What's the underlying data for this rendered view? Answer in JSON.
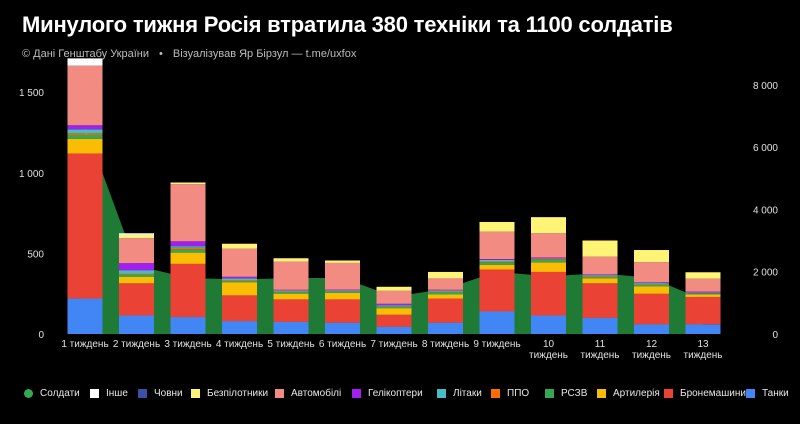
{
  "header": {
    "title": "Минулого тижня Росія втратила 380 техніки та 1100 солдатів",
    "source": "© Дані Генштабу України",
    "credit": "Візуалізував Яр Бірзул — t.me/uxfox"
  },
  "chart_data": {
    "type": "bar",
    "stacked": true,
    "categories": [
      "1 тиждень",
      "2 тиждень",
      "3 тиждень",
      "4 тиждень",
      "5 тиждень",
      "6 тиждень",
      "7 тиждень",
      "8 тиждень",
      "9 тиждень",
      "10 тиждень",
      "11 тиждень",
      "12 тиждень",
      "13 тиждень"
    ],
    "category_lines": [
      [
        "1 тиждень"
      ],
      [
        "2 тиждень"
      ],
      [
        "3 тиждень"
      ],
      [
        "4 тиждень"
      ],
      [
        "5 тиждень"
      ],
      [
        "6 тиждень"
      ],
      [
        "7 тиждень"
      ],
      [
        "8 тиждень"
      ],
      [
        "9 тиждень"
      ],
      [
        "10",
        "тиждень"
      ],
      [
        "11",
        "тиждень"
      ],
      [
        "12",
        "тиждень"
      ],
      [
        "13",
        "тиждень"
      ]
    ],
    "y_left": {
      "min": 0,
      "max": 1700,
      "ticks": [
        0,
        500,
        1000,
        1500
      ],
      "tick_labels": [
        "0",
        "500",
        "1 000",
        "1 500"
      ]
    },
    "y_right": {
      "min": 0,
      "max": 8800,
      "ticks": [
        0,
        2000,
        4000,
        6000,
        8000
      ],
      "tick_labels": [
        "0",
        "2 000",
        "4 000",
        "6 000",
        "8 000"
      ]
    },
    "series": [
      {
        "name": "Танки",
        "color": "#4285f4",
        "values": [
          220,
          115,
          105,
          80,
          75,
          70,
          45,
          70,
          140,
          115,
          100,
          60,
          60
        ]
      },
      {
        "name": "Бронемашини",
        "color": "#ea4335",
        "values": [
          900,
          200,
          330,
          160,
          140,
          145,
          75,
          150,
          260,
          270,
          215,
          190,
          170
        ]
      },
      {
        "name": "Артилерія",
        "color": "#fbbc04",
        "values": [
          90,
          40,
          70,
          80,
          35,
          40,
          40,
          25,
          30,
          60,
          30,
          45,
          15
        ]
      },
      {
        "name": "РСЗВ",
        "color": "#34a853",
        "values": [
          25,
          15,
          20,
          10,
          10,
          8,
          10,
          15,
          15,
          15,
          10,
          12,
          5
        ]
      },
      {
        "name": "ППО",
        "color": "#ff6d01",
        "values": [
          10,
          5,
          10,
          5,
          5,
          3,
          3,
          5,
          5,
          5,
          5,
          4,
          3
        ]
      },
      {
        "name": "Літаки",
        "color": "#46bdc6",
        "values": [
          25,
          20,
          10,
          10,
          5,
          5,
          5,
          5,
          10,
          5,
          5,
          5,
          5
        ]
      },
      {
        "name": "Гелікоптери",
        "color": "#a020f0",
        "values": [
          25,
          45,
          30,
          10,
          5,
          5,
          10,
          5,
          5,
          5,
          5,
          5,
          5
        ]
      },
      {
        "name": "Автомобілі",
        "color": "#f28b82",
        "values": [
          370,
          155,
          355,
          175,
          175,
          165,
          80,
          70,
          170,
          150,
          110,
          125,
          80
        ]
      },
      {
        "name": "Безпілотники",
        "color": "#fff475",
        "values": [
          0,
          20,
          10,
          30,
          20,
          15,
          25,
          40,
          60,
          100,
          100,
          75,
          40
        ]
      },
      {
        "name": "Човни",
        "color": "#3c4ea6",
        "values": [
          0,
          0,
          0,
          0,
          0,
          0,
          0,
          0,
          0,
          0,
          0,
          0,
          0
        ]
      },
      {
        "name": "Інше",
        "color": "#ffffff",
        "values": [
          45,
          10,
          0,
          0,
          0,
          0,
          0,
          0,
          0,
          0,
          0,
          0,
          0
        ]
      }
    ],
    "line_series": {
      "name": "Солдати",
      "axis": "right",
      "type": "area",
      "color": "#34a853",
      "fill": "#1e7a34",
      "values": [
        6700,
        2200,
        1800,
        1750,
        1800,
        1800,
        1200,
        1450,
        2000,
        1850,
        1950,
        1800,
        1100
      ]
    },
    "legend": {
      "position": "bottom",
      "order": [
        "Солдати",
        "Інше",
        "Човни",
        "Безпілотники",
        "Автомобілі",
        "Гелікоптери",
        "Літаки",
        "ППО",
        "РСЗВ",
        "Артилерія",
        "Бронемашини",
        "Танки"
      ],
      "dot_items": [
        "Солдати"
      ]
    },
    "grid": false
  }
}
